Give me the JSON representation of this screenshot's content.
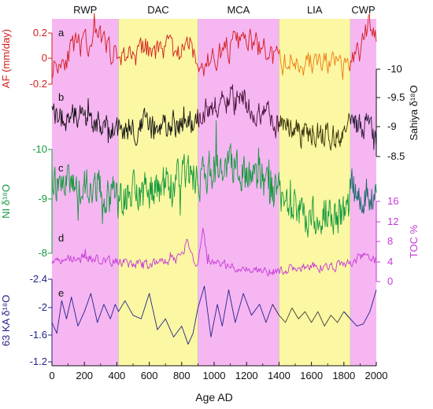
{
  "chart_data": {
    "type": "line",
    "xaxis": {
      "label": "Age AD",
      "range": [
        0,
        2000
      ],
      "ticks": [
        0,
        200,
        400,
        600,
        800,
        1000,
        1200,
        1400,
        1600,
        1800,
        2000
      ]
    },
    "periods": [
      {
        "label": "RWP",
        "start": 0,
        "end": 410,
        "color": "#f6b6f2"
      },
      {
        "label": "DAC",
        "start": 410,
        "end": 900,
        "color": "#fbf7a2"
      },
      {
        "label": "MCA",
        "start": 900,
        "end": 1400,
        "color": "#f6b6f2"
      },
      {
        "label": "LIA",
        "start": 1400,
        "end": 1840,
        "color": "#fbf7a2"
      },
      {
        "label": "CWP",
        "start": 1840,
        "end": 2000,
        "color": "#f6b6f2"
      }
    ],
    "panels": [
      {
        "letter": "a",
        "axis_label": "AF (mm/day)",
        "side": "left",
        "color": "#d21c1c",
        "ticks": [
          "0.2",
          "0",
          "-0.2"
        ],
        "inverted": false,
        "yrange": [
          -0.22,
          0.3
        ],
        "segments": [
          {
            "from": 1400,
            "to": 1840,
            "color": "#f07a12"
          }
        ],
        "seed": 11,
        "points": 330,
        "noise": 0.09,
        "anchors": [
          [
            0,
            -0.08
          ],
          [
            100,
            0.02
          ],
          [
            200,
            0.1
          ],
          [
            300,
            0.12
          ],
          [
            400,
            0.0
          ],
          [
            500,
            0.02
          ],
          [
            600,
            0.05
          ],
          [
            700,
            0.06
          ],
          [
            800,
            0.04
          ],
          [
            850,
            0.16
          ],
          [
            900,
            -0.12
          ],
          [
            1000,
            0.0
          ],
          [
            1100,
            0.08
          ],
          [
            1200,
            0.12
          ],
          [
            1300,
            0.05
          ],
          [
            1400,
            -0.05
          ],
          [
            1500,
            -0.04
          ],
          [
            1600,
            -0.05
          ],
          [
            1700,
            -0.06
          ],
          [
            1800,
            -0.1
          ],
          [
            1840,
            -0.05
          ],
          [
            1900,
            0.05
          ],
          [
            1960,
            0.25
          ],
          [
            2000,
            0.18
          ]
        ]
      },
      {
        "letter": "b",
        "axis_label": "Sahiya δ¹⁸O",
        "side": "right",
        "color": "#111111",
        "ticks": [
          "-10",
          "-9.5",
          "-9",
          "-8.5"
        ],
        "inverted": true,
        "yrange": [
          -10.15,
          -8.45
        ],
        "segments": [
          {
            "from": 900,
            "to": 1400,
            "color": "#4a1238"
          },
          {
            "from": 1400,
            "to": 1840,
            "color": "#3a3208"
          },
          {
            "from": 1840,
            "to": 2000,
            "color": "#2a1f3a"
          }
        ],
        "seed": 23,
        "points": 520,
        "noise": 0.2,
        "anchors": [
          [
            0,
            -9.2
          ],
          [
            200,
            -9.25
          ],
          [
            400,
            -9.0
          ],
          [
            600,
            -9.05
          ],
          [
            800,
            -9.1
          ],
          [
            900,
            -9.2
          ],
          [
            1000,
            -9.4
          ],
          [
            1100,
            -9.55
          ],
          [
            1200,
            -9.45
          ],
          [
            1300,
            -9.3
          ],
          [
            1400,
            -9.05
          ],
          [
            1500,
            -9.0
          ],
          [
            1600,
            -8.9
          ],
          [
            1700,
            -8.95
          ],
          [
            1800,
            -8.85
          ],
          [
            1850,
            -9.1
          ],
          [
            1950,
            -9.0
          ],
          [
            2000,
            -8.9
          ]
        ]
      },
      {
        "letter": "c",
        "axis_label": "NI δ¹⁸O",
        "side": "left",
        "color": "#139a3e",
        "ticks": [
          "-10",
          "-9",
          "-8"
        ],
        "inverted": true,
        "yrange": [
          -10.25,
          -7.9
        ],
        "segments": [
          {
            "from": 1840,
            "to": 2000,
            "color": "#1c6a6a"
          }
        ],
        "seed": 37,
        "points": 560,
        "noise": 0.28,
        "anchors": [
          [
            0,
            -9.2
          ],
          [
            200,
            -9.15
          ],
          [
            400,
            -8.9
          ],
          [
            600,
            -9.0
          ],
          [
            800,
            -9.2
          ],
          [
            900,
            -9.25
          ],
          [
            1000,
            -9.4
          ],
          [
            1100,
            -9.5
          ],
          [
            1200,
            -9.35
          ],
          [
            1300,
            -9.2
          ],
          [
            1400,
            -8.95
          ],
          [
            1500,
            -8.85
          ],
          [
            1600,
            -8.6
          ],
          [
            1700,
            -8.8
          ],
          [
            1800,
            -8.6
          ],
          [
            1850,
            -9.0
          ],
          [
            1950,
            -9.1
          ],
          [
            2000,
            -9.0
          ]
        ]
      },
      {
        "letter": "d",
        "axis_label": "TOC %",
        "side": "right",
        "color": "#c63ad8",
        "ticks": [
          "16",
          "12",
          "8",
          "4",
          "0"
        ],
        "inverted": false,
        "yrange": [
          0,
          16.5
        ],
        "segments": [],
        "seed": 51,
        "points": 420,
        "noise": 0.8,
        "anchors": [
          [
            0,
            4.5
          ],
          [
            200,
            5.0
          ],
          [
            400,
            4.0
          ],
          [
            600,
            3.5
          ],
          [
            800,
            4.5
          ],
          [
            830,
            8.0
          ],
          [
            860,
            5.0
          ],
          [
            900,
            4.0
          ],
          [
            930,
            11.5
          ],
          [
            960,
            4.0
          ],
          [
            1100,
            3.0
          ],
          [
            1200,
            2.5
          ],
          [
            1300,
            2.0
          ],
          [
            1400,
            2.5
          ],
          [
            1600,
            3.0
          ],
          [
            1800,
            3.5
          ],
          [
            1900,
            5.0
          ],
          [
            2000,
            4.5
          ]
        ]
      },
      {
        "letter": "e",
        "axis_label": "63 KA δ¹⁸O",
        "side": "left",
        "color": "#23238a",
        "ticks": [
          "-2.4",
          "-2",
          "-1.6",
          "-1.2"
        ],
        "inverted": true,
        "yrange": [
          -2.45,
          -1.15
        ],
        "segments": [
          {
            "from": 1400,
            "to": 1840,
            "color": "#3c3c3c"
          }
        ],
        "seed": 0,
        "points": 0,
        "noise": 0,
        "anchors": [
          [
            0,
            -1.8
          ],
          [
            30,
            -1.65
          ],
          [
            60,
            -2.1
          ],
          [
            90,
            -1.85
          ],
          [
            120,
            -2.15
          ],
          [
            160,
            -1.75
          ],
          [
            200,
            -1.95
          ],
          [
            240,
            -2.2
          ],
          [
            280,
            -1.8
          ],
          [
            320,
            -2.05
          ],
          [
            360,
            -1.85
          ],
          [
            390,
            -2.05
          ],
          [
            410,
            -1.95
          ],
          [
            450,
            -2.1
          ],
          [
            500,
            -1.9
          ],
          [
            550,
            -1.85
          ],
          [
            600,
            -2.2
          ],
          [
            650,
            -1.7
          ],
          [
            700,
            -1.85
          ],
          [
            750,
            -1.6
          ],
          [
            800,
            -1.75
          ],
          [
            840,
            -1.5
          ],
          [
            870,
            -1.65
          ],
          [
            900,
            -2.0
          ],
          [
            940,
            -2.3
          ],
          [
            980,
            -1.6
          ],
          [
            1020,
            -2.05
          ],
          [
            1050,
            -1.75
          ],
          [
            1090,
            -2.25
          ],
          [
            1130,
            -1.8
          ],
          [
            1180,
            -2.2
          ],
          [
            1230,
            -1.9
          ],
          [
            1280,
            -2.05
          ],
          [
            1320,
            -1.8
          ],
          [
            1360,
            -2.05
          ],
          [
            1400,
            -1.9
          ],
          [
            1440,
            -1.8
          ],
          [
            1480,
            -2.0
          ],
          [
            1520,
            -1.85
          ],
          [
            1560,
            -1.95
          ],
          [
            1600,
            -1.8
          ],
          [
            1640,
            -1.95
          ],
          [
            1680,
            -1.75
          ],
          [
            1720,
            -1.9
          ],
          [
            1760,
            -1.8
          ],
          [
            1800,
            -1.95
          ],
          [
            1840,
            -1.85
          ],
          [
            1880,
            -1.75
          ],
          [
            1920,
            -1.78
          ],
          [
            1960,
            -1.95
          ],
          [
            2000,
            -2.25
          ]
        ]
      }
    ]
  }
}
